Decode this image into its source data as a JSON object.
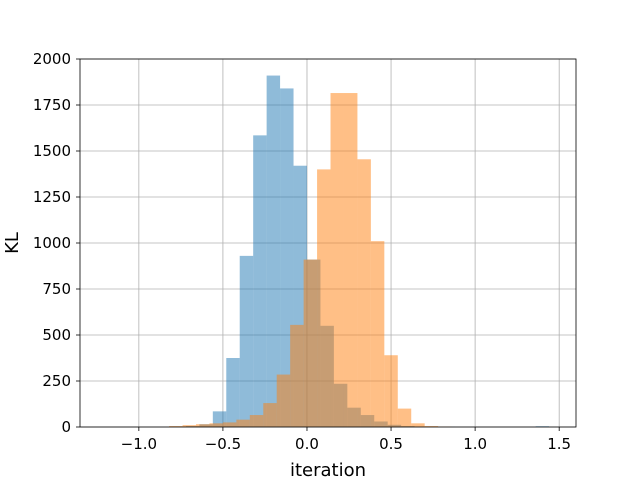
{
  "chart_data": {
    "type": "histogram",
    "title": "",
    "xlabel": "iteration",
    "ylabel": "KL",
    "xlim": [
      -1.35,
      1.6
    ],
    "ylim": [
      0,
      2000
    ],
    "xticks": [
      -1.0,
      -0.5,
      0.0,
      0.5,
      1.0,
      1.5
    ],
    "xtick_labels": [
      "−1.0",
      "−0.5",
      "0.0",
      "0.5",
      "1.0",
      "1.5"
    ],
    "yticks": [
      0,
      250,
      500,
      750,
      1000,
      1250,
      1500,
      1750,
      2000
    ],
    "ytick_labels": [
      "0",
      "250",
      "500",
      "750",
      "1000",
      "1250",
      "1500",
      "1750",
      "2000"
    ],
    "grid": true,
    "legend": "none",
    "series": [
      {
        "color": "#1f77b4",
        "alpha": 0.5,
        "bin_edges": [
          -0.8,
          -0.72,
          -0.64,
          -0.56,
          -0.48,
          -0.4,
          -0.32,
          -0.24,
          -0.16,
          -0.08,
          0.0,
          0.08,
          0.16,
          0.24,
          0.32,
          0.4,
          0.48,
          0.56,
          0.64,
          0.72,
          0.8,
          0.88
        ],
        "counts": [
          2,
          5,
          15,
          85,
          375,
          930,
          1585,
          1910,
          1840,
          1420,
          910,
          550,
          235,
          105,
          65,
          30,
          12,
          5,
          2,
          1,
          1
        ],
        "outliers": [
          {
            "x": 1.36,
            "x2": 1.44,
            "count": 4
          }
        ]
      },
      {
        "color": "#ff7f0e",
        "alpha": 0.5,
        "bin_edges": [
          -0.82,
          -0.74,
          -0.66,
          -0.58,
          -0.5,
          -0.42,
          -0.34,
          -0.26,
          -0.18,
          -0.1,
          -0.02,
          0.06,
          0.14,
          0.22,
          0.3,
          0.38,
          0.46,
          0.54,
          0.62,
          0.7,
          0.78,
          0.86
        ],
        "counts": [
          5,
          10,
          15,
          20,
          25,
          40,
          65,
          130,
          285,
          555,
          910,
          1400,
          1815,
          1815,
          1455,
          1010,
          390,
          100,
          20,
          5,
          2
        ]
      }
    ]
  }
}
